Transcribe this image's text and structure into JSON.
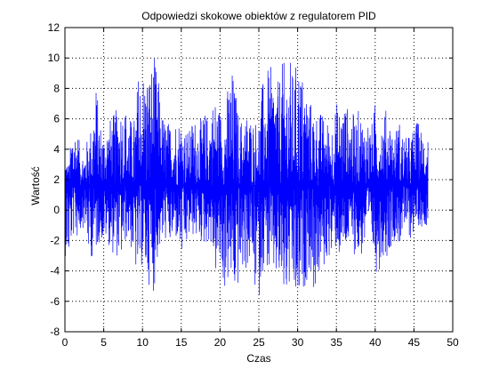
{
  "chart_data": {
    "type": "line",
    "title": "Odpowiedzi skokowe obiektów z regulatorem PID",
    "xlabel": "Czas",
    "ylabel": "Wartość",
    "xlim": [
      0,
      50
    ],
    "ylim": [
      -8,
      12
    ],
    "xticks": [
      0,
      5,
      10,
      15,
      20,
      25,
      30,
      35,
      40,
      45,
      50
    ],
    "yticks": [
      -8,
      -6,
      -4,
      -2,
      0,
      2,
      4,
      6,
      8,
      10,
      12
    ],
    "x_range_of_data": [
      0,
      46.8
    ],
    "grid": true,
    "grid_style": "dotted",
    "line_color": "#0000ff",
    "series": [
      {
        "x": [
          0.0,
          0.5,
          1.0,
          1.5,
          2.0,
          2.5,
          3.0,
          3.5,
          4.0,
          4.5,
          5.0,
          5.5,
          6.0,
          6.5,
          7.0,
          7.5,
          8.0,
          8.5,
          9.0,
          9.5,
          10.0,
          10.5,
          11.0,
          11.5,
          12.0,
          12.5,
          13.0,
          13.5,
          14.0,
          14.5,
          15.0,
          15.5,
          16.0,
          16.5,
          17.0,
          17.5,
          18.0,
          18.5,
          19.0,
          19.5,
          20.0,
          20.5,
          21.0,
          21.5,
          22.0,
          22.5,
          23.0,
          23.5,
          24.0,
          24.5,
          25.0,
          25.5,
          26.0,
          26.5,
          27.0,
          27.5,
          28.0,
          28.5,
          29.0,
          29.5,
          30.0,
          30.5,
          31.0,
          31.5,
          32.0,
          32.5,
          33.0,
          33.5,
          34.0,
          34.5,
          35.0,
          35.5,
          36.0,
          36.5,
          37.0,
          37.5,
          38.0,
          38.5,
          39.0,
          39.5,
          40.0,
          40.5,
          41.0,
          41.5,
          42.0,
          42.5,
          43.0,
          43.5,
          44.0,
          44.5,
          45.0,
          45.5,
          46.0,
          46.5
        ],
        "ymax": [
          3.6,
          3.0,
          6.0,
          5.5,
          4.2,
          3.8,
          5.0,
          5.8,
          8.5,
          6.0,
          5.2,
          5.8,
          6.2,
          6.5,
          7.2,
          7.0,
          6.8,
          6.0,
          6.2,
          9.3,
          9.5,
          9.2,
          9.5,
          10.2,
          9.0,
          6.5,
          6.0,
          5.8,
          6.3,
          6.0,
          6.2,
          5.5,
          5.2,
          6.2,
          6.0,
          6.0,
          6.5,
          6.2,
          7.3,
          7.5,
          6.8,
          6.0,
          8.2,
          9.5,
          8.0,
          6.0,
          6.2,
          6.5,
          6.2,
          6.0,
          6.2,
          8.5,
          9.2,
          9.5,
          8.8,
          8.5,
          9.8,
          9.7,
          10.0,
          9.0,
          10.2,
          9.2,
          8.5,
          7.5,
          6.8,
          6.5,
          6.5,
          6.2,
          5.8,
          6.0,
          7.2,
          6.7,
          7.2,
          6.8,
          6.5,
          6.2,
          6.8,
          5.8,
          6.2,
          5.5,
          7.2,
          6.0,
          6.5,
          6.7,
          6.0,
          5.0,
          6.2,
          5.2,
          4.8,
          5.0,
          5.5,
          6.0,
          5.3,
          5.5
        ],
        "ymin": [
          -3.0,
          -3.5,
          -1.8,
          -2.0,
          -1.5,
          -1.0,
          -3.0,
          -3.2,
          -2.8,
          -2.0,
          -2.2,
          -2.0,
          -3.0,
          -2.8,
          -3.5,
          -3.0,
          -1.8,
          -2.5,
          -4.0,
          -4.8,
          -3.5,
          -4.8,
          -5.0,
          -5.5,
          -3.0,
          -2.5,
          -2.0,
          -2.5,
          -2.2,
          -2.0,
          -3.5,
          -3.0,
          -2.0,
          -1.8,
          -2.0,
          -2.2,
          -2.5,
          -2.0,
          -3.0,
          -4.5,
          -4.0,
          -5.5,
          -5.0,
          -5.2,
          -6.0,
          -4.8,
          -4.2,
          -4.0,
          -3.5,
          -5.5,
          -6.0,
          -4.0,
          -3.8,
          -5.0,
          -4.5,
          -5.0,
          -5.8,
          -6.2,
          -5.5,
          -6.0,
          -7.2,
          -5.8,
          -5.0,
          -4.0,
          -5.5,
          -5.2,
          -4.2,
          -4.0,
          -3.0,
          -3.5,
          -2.5,
          -3.5,
          -3.0,
          -2.5,
          -2.8,
          -3.0,
          -3.5,
          -2.8,
          -2.2,
          -2.0,
          -4.2,
          -4.0,
          -3.0,
          -3.2,
          -2.5,
          -2.0,
          -2.5,
          -1.8,
          -1.5,
          -2.0,
          -1.5,
          -1.0,
          -1.2,
          -1.0
        ],
        "ymean": 1.6
      }
    ]
  }
}
